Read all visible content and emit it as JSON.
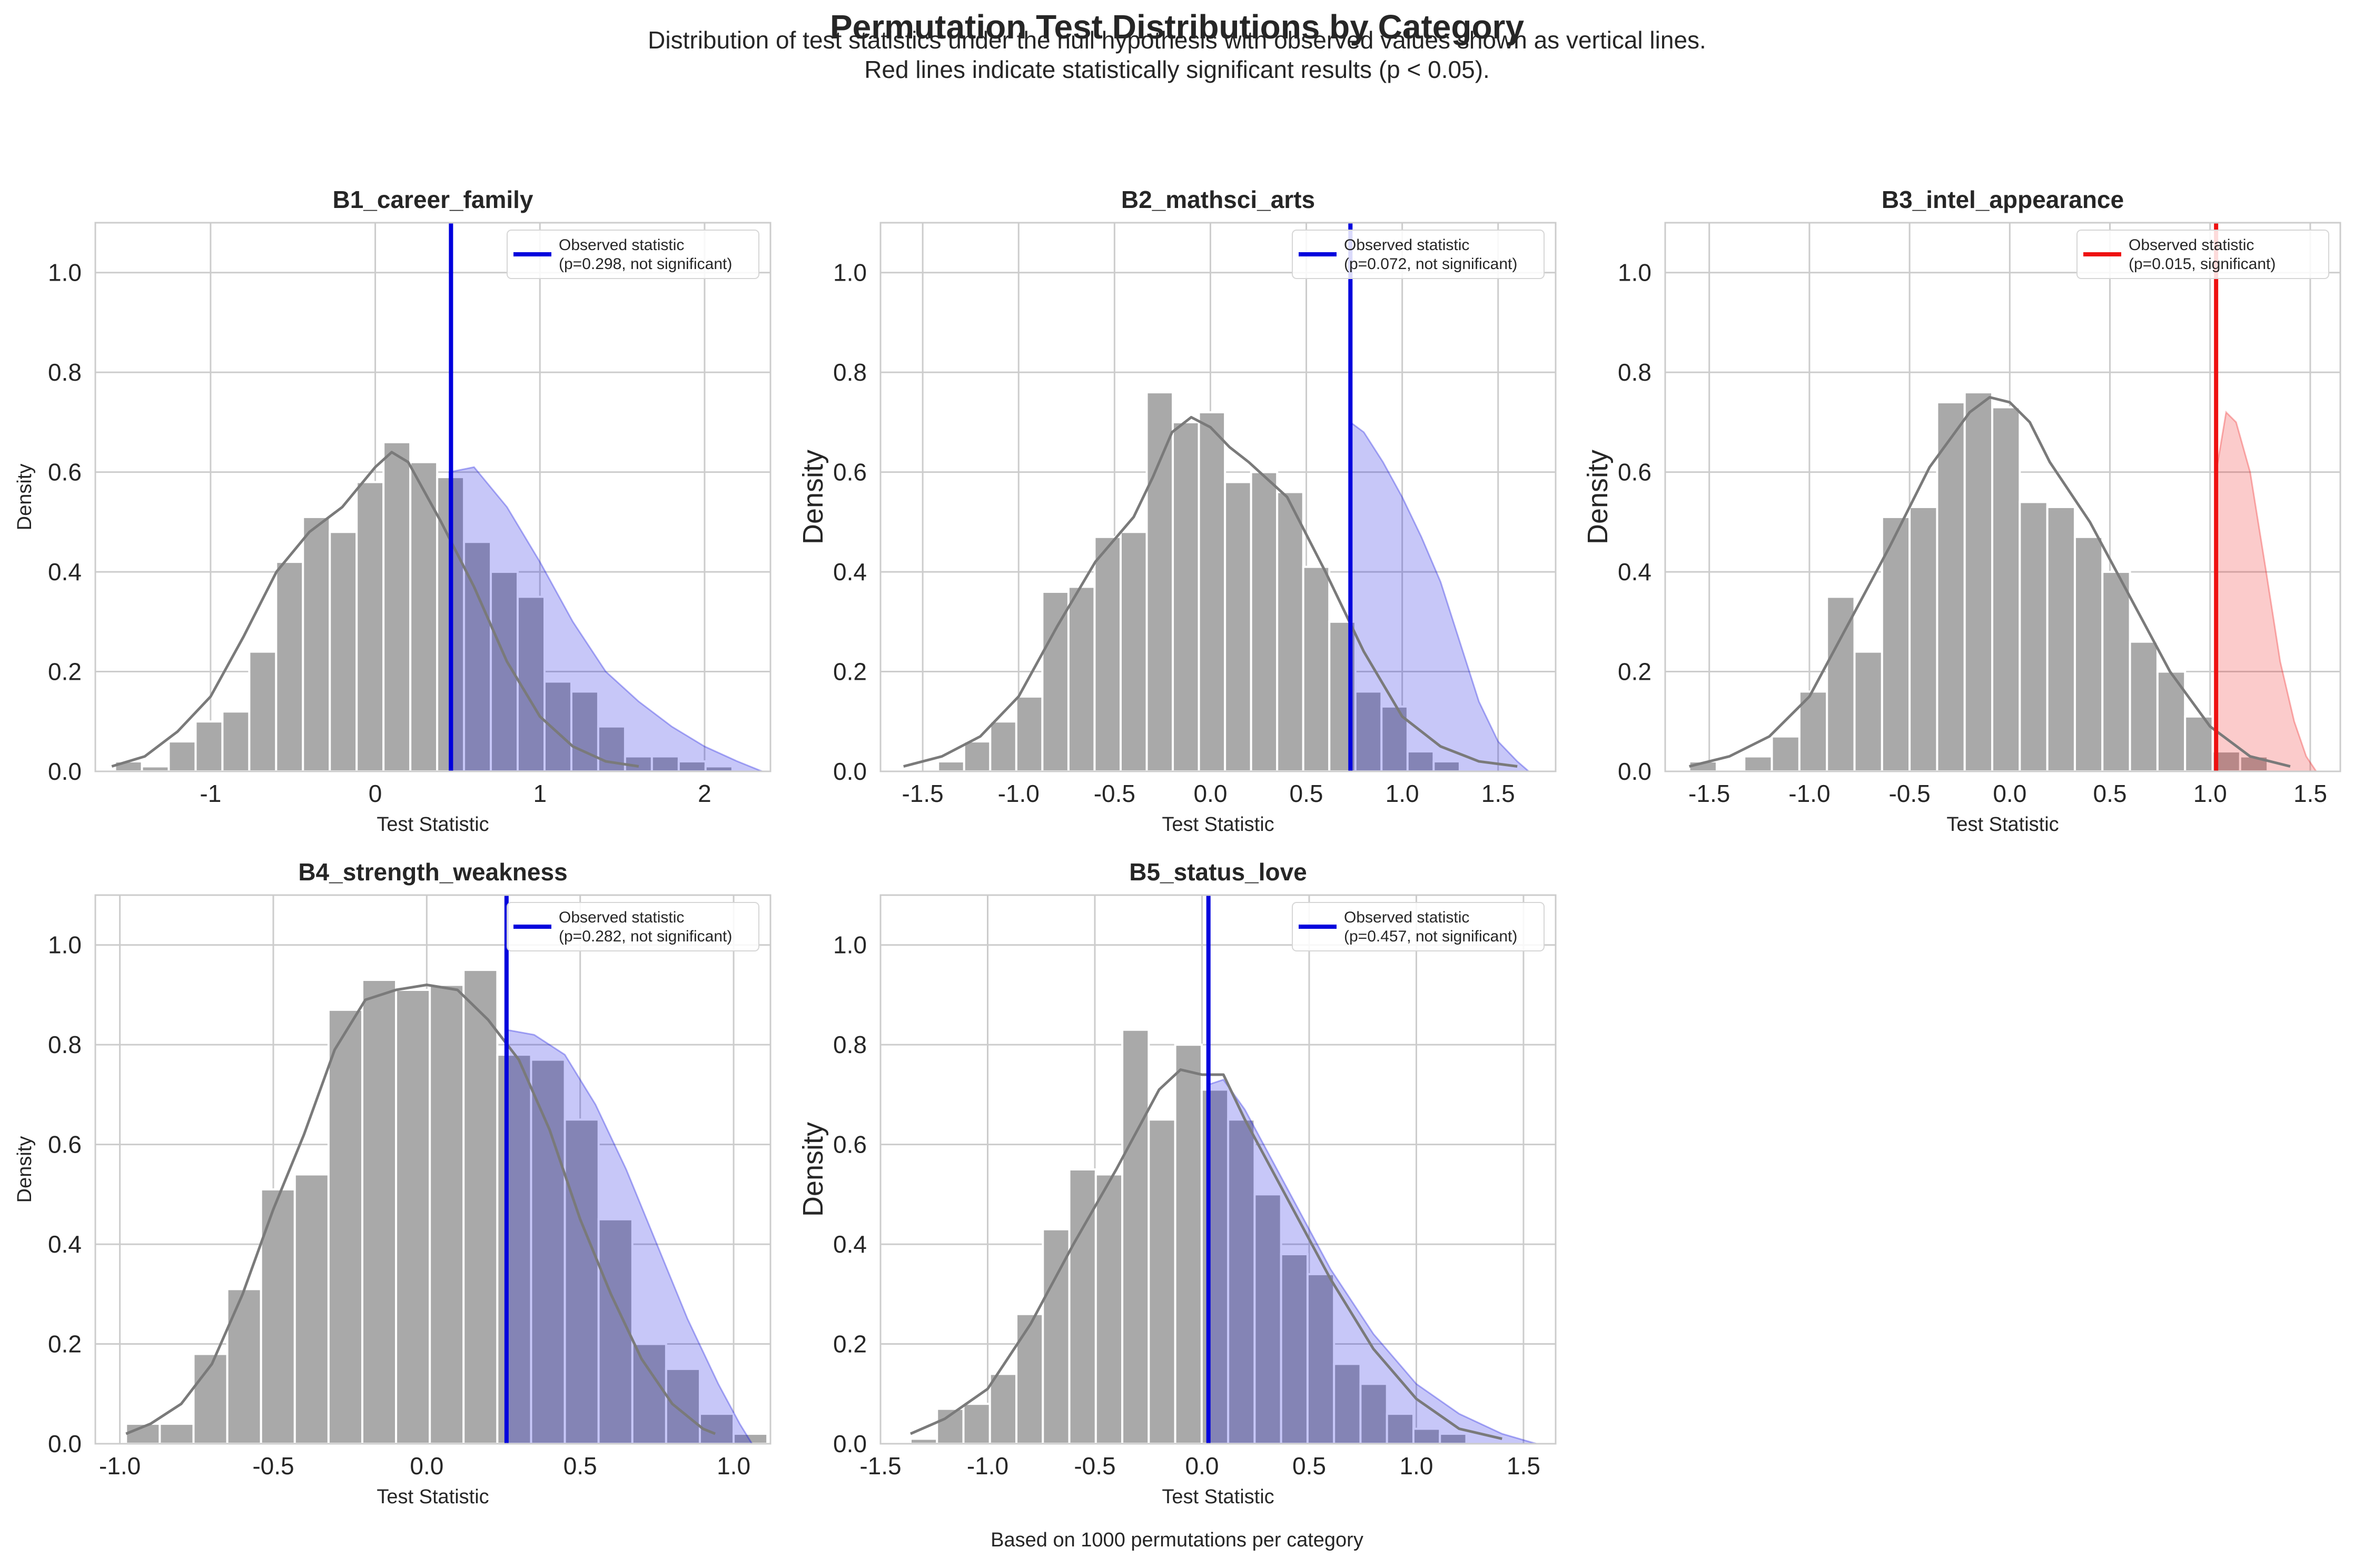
{
  "figure": {
    "title": "Permutation Test Distributions by Category",
    "subtitle_lines": [
      "Distribution of test statistics under the null hypothesis with observed values shown as vertical lines.",
      "Red lines indicate statistically significant results (p < 0.05)."
    ],
    "footnote": "Based on 1000 permutations per category"
  },
  "colors": {
    "bars": "#a9a9a9",
    "kde": "#7a7a7a",
    "not_significant": "#0000dd",
    "significant": "#ee1111",
    "grid": "#cccccc",
    "frame": "#cccccc"
  },
  "chart_data": [
    {
      "type": "histogram",
      "title": "B1_career_family",
      "xlabel": "Test Statistic",
      "ylabel": "Density",
      "xlim": [
        -1.7,
        2.4
      ],
      "ylim": [
        0,
        1.1
      ],
      "xticks": [
        -1,
        0,
        1,
        2
      ],
      "xtick_labels": [
        "-1",
        "0",
        "1",
        "2"
      ],
      "yticks": [
        0.0,
        0.2,
        0.4,
        0.6,
        0.8,
        1.0
      ],
      "ytick_labels": [
        "0.0",
        "0.2",
        "0.4",
        "0.6",
        "0.8",
        "1.0"
      ],
      "bin_start": -1.58,
      "bin_width": 0.163,
      "densities": [
        0.02,
        0.01,
        0.06,
        0.1,
        0.12,
        0.24,
        0.42,
        0.51,
        0.48,
        0.58,
        0.66,
        0.62,
        0.59,
        0.46,
        0.4,
        0.35,
        0.18,
        0.16,
        0.09,
        0.03,
        0.03,
        0.02,
        0.01
      ],
      "kde_x": [
        -1.6,
        -1.4,
        -1.2,
        -1.0,
        -0.8,
        -0.6,
        -0.4,
        -0.2,
        0.0,
        0.1,
        0.2,
        0.4,
        0.6,
        0.8,
        1.0,
        1.2,
        1.4,
        1.6
      ],
      "kde_y": [
        0.01,
        0.03,
        0.08,
        0.15,
        0.27,
        0.4,
        0.48,
        0.53,
        0.61,
        0.64,
        0.62,
        0.5,
        0.37,
        0.22,
        0.11,
        0.05,
        0.02,
        0.01
      ],
      "shaded_x": [
        0.45,
        0.6,
        0.8,
        1.0,
        1.2,
        1.4,
        1.6,
        1.8,
        2.0,
        2.2,
        2.35
      ],
      "shaded_y": [
        0.6,
        0.61,
        0.53,
        0.42,
        0.3,
        0.2,
        0.14,
        0.09,
        0.05,
        0.02,
        0.0
      ],
      "observed": 0.46,
      "p_value": 0.298,
      "significant": false,
      "legend_label": "Observed statistic",
      "legend_detail": "(p=0.298, not significant)",
      "ylabel_size": "small"
    },
    {
      "type": "histogram",
      "title": "B2_mathsci_arts",
      "xlabel": "Test Statistic",
      "ylabel": "Density",
      "xlim": [
        -1.72,
        1.8
      ],
      "ylim": [
        0,
        1.1
      ],
      "xticks": [
        -1.5,
        -1.0,
        -0.5,
        0.0,
        0.5,
        1.0,
        1.5
      ],
      "xtick_labels": [
        "-1.5",
        "-1.0",
        "-0.5",
        "0.0",
        "0.5",
        "1.0",
        "1.5"
      ],
      "yticks": [
        0.0,
        0.2,
        0.4,
        0.6,
        0.8,
        1.0
      ],
      "ytick_labels": [
        "0.0",
        "0.2",
        "0.4",
        "0.6",
        "0.8",
        "1.0"
      ],
      "bin_start": -1.42,
      "bin_width": 0.136,
      "densities": [
        0.02,
        0.06,
        0.1,
        0.15,
        0.36,
        0.37,
        0.47,
        0.48,
        0.76,
        0.7,
        0.72,
        0.58,
        0.6,
        0.56,
        0.41,
        0.3,
        0.16,
        0.13,
        0.04,
        0.02
      ],
      "kde_x": [
        -1.6,
        -1.4,
        -1.2,
        -1.0,
        -0.8,
        -0.6,
        -0.4,
        -0.3,
        -0.2,
        -0.1,
        0.0,
        0.1,
        0.2,
        0.4,
        0.6,
        0.8,
        1.0,
        1.2,
        1.4,
        1.6
      ],
      "kde_y": [
        0.01,
        0.03,
        0.07,
        0.15,
        0.29,
        0.42,
        0.51,
        0.59,
        0.68,
        0.71,
        0.69,
        0.65,
        0.62,
        0.55,
        0.4,
        0.24,
        0.11,
        0.05,
        0.02,
        0.01
      ],
      "shaded_x": [
        0.73,
        0.8,
        0.9,
        1.0,
        1.1,
        1.2,
        1.3,
        1.4,
        1.5,
        1.6,
        1.66
      ],
      "shaded_y": [
        0.7,
        0.68,
        0.62,
        0.55,
        0.47,
        0.38,
        0.26,
        0.14,
        0.06,
        0.02,
        0.0
      ],
      "observed": 0.73,
      "p_value": 0.072,
      "significant": false,
      "legend_label": "Observed statistic",
      "legend_detail": "(p=0.072, not significant)",
      "ylabel_size": "large"
    },
    {
      "type": "histogram",
      "title": "B3_intel_appearance",
      "xlabel": "Test Statistic",
      "ylabel": "Density",
      "xlim": [
        -1.72,
        1.65
      ],
      "ylim": [
        0,
        1.1
      ],
      "xticks": [
        -1.5,
        -1.0,
        -0.5,
        0.0,
        0.5,
        1.0,
        1.5
      ],
      "xtick_labels": [
        "-1.5",
        "-1.0",
        "-0.5",
        "0.0",
        "0.5",
        "1.0",
        "1.5"
      ],
      "yticks": [
        0.0,
        0.2,
        0.4,
        0.6,
        0.8,
        1.0
      ],
      "ytick_labels": [
        "0.0",
        "0.2",
        "0.4",
        "0.6",
        "0.8",
        "1.0"
      ],
      "bin_start": -1.6,
      "bin_width": 0.1375,
      "densities": [
        0.02,
        0.0,
        0.03,
        0.07,
        0.16,
        0.35,
        0.24,
        0.51,
        0.53,
        0.74,
        0.76,
        0.73,
        0.54,
        0.53,
        0.47,
        0.4,
        0.26,
        0.2,
        0.11,
        0.04,
        0.03
      ],
      "kde_x": [
        -1.6,
        -1.4,
        -1.2,
        -1.0,
        -0.8,
        -0.6,
        -0.4,
        -0.2,
        -0.1,
        0.0,
        0.1,
        0.2,
        0.4,
        0.6,
        0.8,
        1.0,
        1.2,
        1.4
      ],
      "kde_y": [
        0.01,
        0.03,
        0.07,
        0.15,
        0.3,
        0.45,
        0.61,
        0.72,
        0.75,
        0.74,
        0.7,
        0.62,
        0.5,
        0.35,
        0.2,
        0.09,
        0.03,
        0.01
      ],
      "shaded_x": [
        1.03,
        1.08,
        1.13,
        1.2,
        1.28,
        1.35,
        1.42,
        1.48,
        1.53
      ],
      "shaded_y": [
        0.6,
        0.72,
        0.7,
        0.6,
        0.4,
        0.22,
        0.1,
        0.03,
        0.0
      ],
      "observed": 1.03,
      "p_value": 0.015,
      "significant": true,
      "legend_label": "Observed statistic",
      "legend_detail": "(p=0.015, significant)",
      "ylabel_size": "large"
    },
    {
      "type": "histogram",
      "title": "B4_strength_weakness",
      "xlabel": "Test Statistic",
      "ylabel": "Density",
      "xlim": [
        -1.08,
        1.12
      ],
      "ylim": [
        0,
        1.1
      ],
      "xticks": [
        -1.0,
        -0.5,
        0.0,
        0.5,
        1.0
      ],
      "xtick_labels": [
        "-1.0",
        "-0.5",
        "0.0",
        "0.5",
        "1.0"
      ],
      "yticks": [
        0.0,
        0.2,
        0.4,
        0.6,
        0.8,
        1.0
      ],
      "ytick_labels": [
        "0.0",
        "0.2",
        "0.4",
        "0.6",
        "0.8",
        "1.0"
      ],
      "bin_start": -0.98,
      "bin_width": 0.11,
      "densities": [
        0.04,
        0.04,
        0.18,
        0.31,
        0.51,
        0.54,
        0.87,
        0.93,
        0.91,
        0.92,
        0.95,
        0.78,
        0.77,
        0.65,
        0.45,
        0.2,
        0.15,
        0.06,
        0.02
      ],
      "kde_x": [
        -0.98,
        -0.9,
        -0.8,
        -0.7,
        -0.6,
        -0.5,
        -0.4,
        -0.3,
        -0.2,
        -0.1,
        0.0,
        0.1,
        0.2,
        0.3,
        0.4,
        0.5,
        0.6,
        0.7,
        0.8,
        0.9,
        0.94
      ],
      "kde_y": [
        0.02,
        0.04,
        0.08,
        0.16,
        0.3,
        0.47,
        0.62,
        0.79,
        0.89,
        0.91,
        0.92,
        0.91,
        0.85,
        0.77,
        0.63,
        0.45,
        0.3,
        0.17,
        0.08,
        0.03,
        0.02
      ],
      "shaded_x": [
        0.26,
        0.35,
        0.45,
        0.55,
        0.65,
        0.75,
        0.85,
        0.95,
        1.02,
        1.06
      ],
      "shaded_y": [
        0.83,
        0.82,
        0.78,
        0.68,
        0.55,
        0.4,
        0.25,
        0.12,
        0.04,
        0.0
      ],
      "observed": 0.26,
      "p_value": 0.282,
      "significant": false,
      "legend_label": "Observed statistic",
      "legend_detail": "(p=0.282, not significant)",
      "ylabel_size": "small"
    },
    {
      "type": "histogram",
      "title": "B5_status_love",
      "xlabel": "Test Statistic",
      "ylabel": "Density",
      "xlim": [
        -1.5,
        1.65
      ],
      "ylim": [
        0,
        1.1
      ],
      "xticks": [
        -1.5,
        -1.0,
        -0.5,
        0.0,
        0.5,
        1.0,
        1.5
      ],
      "xtick_labels": [
        "-1.5",
        "-1.0",
        "-0.5",
        "0.0",
        "0.5",
        "1.0",
        "1.5"
      ],
      "yticks": [
        0.0,
        0.2,
        0.4,
        0.6,
        0.8,
        1.0
      ],
      "ytick_labels": [
        "0.0",
        "0.2",
        "0.4",
        "0.6",
        "0.8",
        "1.0"
      ],
      "bin_start": -1.36,
      "bin_width": 0.1235,
      "densities": [
        0.01,
        0.07,
        0.08,
        0.14,
        0.26,
        0.43,
        0.55,
        0.54,
        0.83,
        0.65,
        0.8,
        0.71,
        0.65,
        0.5,
        0.38,
        0.34,
        0.16,
        0.12,
        0.06,
        0.03,
        0.02
      ],
      "kde_x": [
        -1.36,
        -1.2,
        -1.0,
        -0.8,
        -0.6,
        -0.4,
        -0.2,
        -0.1,
        0.0,
        0.1,
        0.2,
        0.4,
        0.6,
        0.8,
        1.0,
        1.2,
        1.4
      ],
      "kde_y": [
        0.02,
        0.05,
        0.11,
        0.24,
        0.4,
        0.55,
        0.71,
        0.75,
        0.74,
        0.74,
        0.65,
        0.49,
        0.33,
        0.19,
        0.09,
        0.03,
        0.01
      ],
      "shaded_x": [
        0.03,
        0.1,
        0.2,
        0.4,
        0.6,
        0.8,
        1.0,
        1.2,
        1.4,
        1.56
      ],
      "shaded_y": [
        0.72,
        0.73,
        0.67,
        0.51,
        0.35,
        0.22,
        0.12,
        0.06,
        0.02,
        0.0
      ],
      "observed": 0.03,
      "p_value": 0.457,
      "significant": false,
      "legend_label": "Observed statistic",
      "legend_detail": "(p=0.457, not significant)",
      "ylabel_size": "large"
    }
  ]
}
